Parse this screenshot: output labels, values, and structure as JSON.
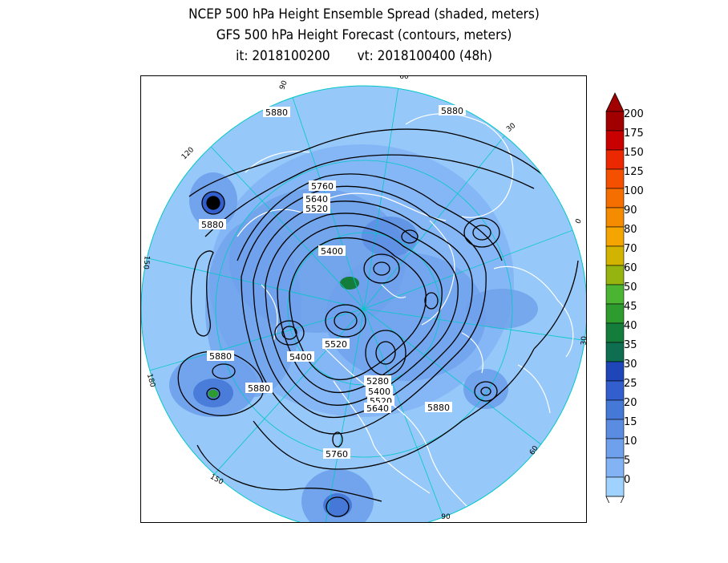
{
  "title": {
    "line1": "NCEP 500 hPa Height Ensemble Spread (shaded, meters)",
    "line2": "GFS 500 hPa Height Forecast (contours, meters)",
    "init": "it: 2018100200",
    "valid": "vt: 2018100400 (48h)"
  },
  "colors": {
    "ocean_base": "#96c8fa",
    "spread_low": "#78b4f0",
    "spread_mid": "#508cdc",
    "coast": "#ffffff",
    "grid": "#00c8c8",
    "contour": "#000000"
  },
  "colorbar": {
    "levels": [
      "0",
      "5",
      "10",
      "15",
      "20",
      "25",
      "30",
      "35",
      "40",
      "45",
      "50",
      "60",
      "70",
      "80",
      "90",
      "100",
      "125",
      "150",
      "175",
      "200"
    ],
    "colors": [
      "#a0d2ff",
      "#82b4f5",
      "#6ea0eb",
      "#5a8ce1",
      "#4678d7",
      "#325fcd",
      "#1e46b9",
      "#0f6e50",
      "#147d3c",
      "#2d9b2d",
      "#4bb432",
      "#96b40f",
      "#d2b400",
      "#f5a500",
      "#f58c00",
      "#f56e00",
      "#f55000",
      "#eb2800",
      "#c80000",
      "#a00000"
    ]
  },
  "longitude_labels": [
    "60",
    "30",
    "0",
    "30",
    "60",
    "90",
    "120",
    "150",
    "180",
    "150",
    "120",
    "90"
  ],
  "contour_labels": [
    "5880",
    "5880",
    "5760",
    "5640",
    "5520",
    "5400",
    "5880",
    "5520",
    "5400",
    "5880",
    "5880",
    "5280",
    "5400",
    "5520",
    "5640",
    "5880",
    "5760"
  ],
  "icons": {
    "map": "polar-stereographic-map",
    "colorbar": "color-scale-bar"
  }
}
